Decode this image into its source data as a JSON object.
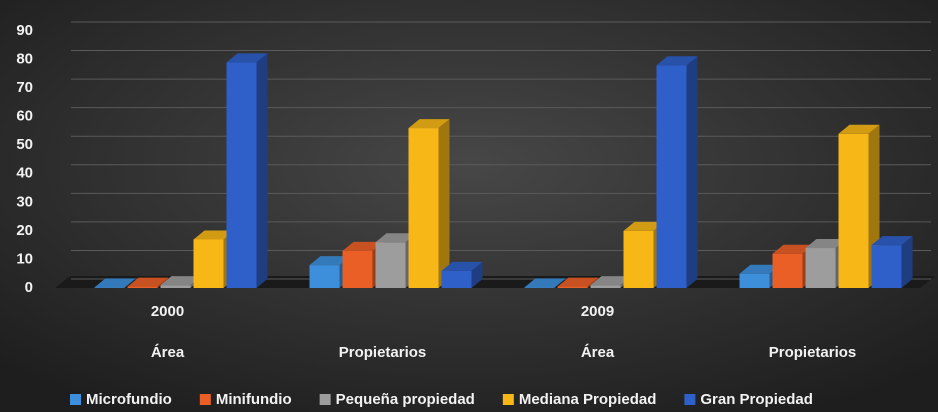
{
  "chart_data": {
    "type": "bar3d",
    "groups": [
      {
        "name": "2000",
        "categories": [
          "Área",
          "Propietarios"
        ]
      },
      {
        "name": "2009",
        "categories": [
          "Área",
          "Propietarios"
        ]
      }
    ],
    "series": [
      {
        "name": "Microfundio",
        "color": "#3d8fdb",
        "values": [
          0.2,
          8,
          0.2,
          5
        ]
      },
      {
        "name": "Minifundio",
        "color": "#ea5f26",
        "values": [
          0.5,
          13,
          0.5,
          12
        ]
      },
      {
        "name": "Pequeña propiedad",
        "color": "#9d9d9d",
        "values": [
          1,
          16,
          1,
          14
        ]
      },
      {
        "name": "Mediana Propiedad",
        "color": "#f6b717",
        "values": [
          17,
          56,
          20,
          54
        ]
      },
      {
        "name": "Gran Propiedad",
        "color": "#2f5fc8",
        "values": [
          79,
          6,
          78,
          15
        ]
      }
    ],
    "ylim": [
      0,
      90
    ],
    "yticks": [
      0,
      10,
      20,
      30,
      40,
      50,
      60,
      70,
      80,
      90
    ],
    "grid": true,
    "legend": "bottom"
  }
}
